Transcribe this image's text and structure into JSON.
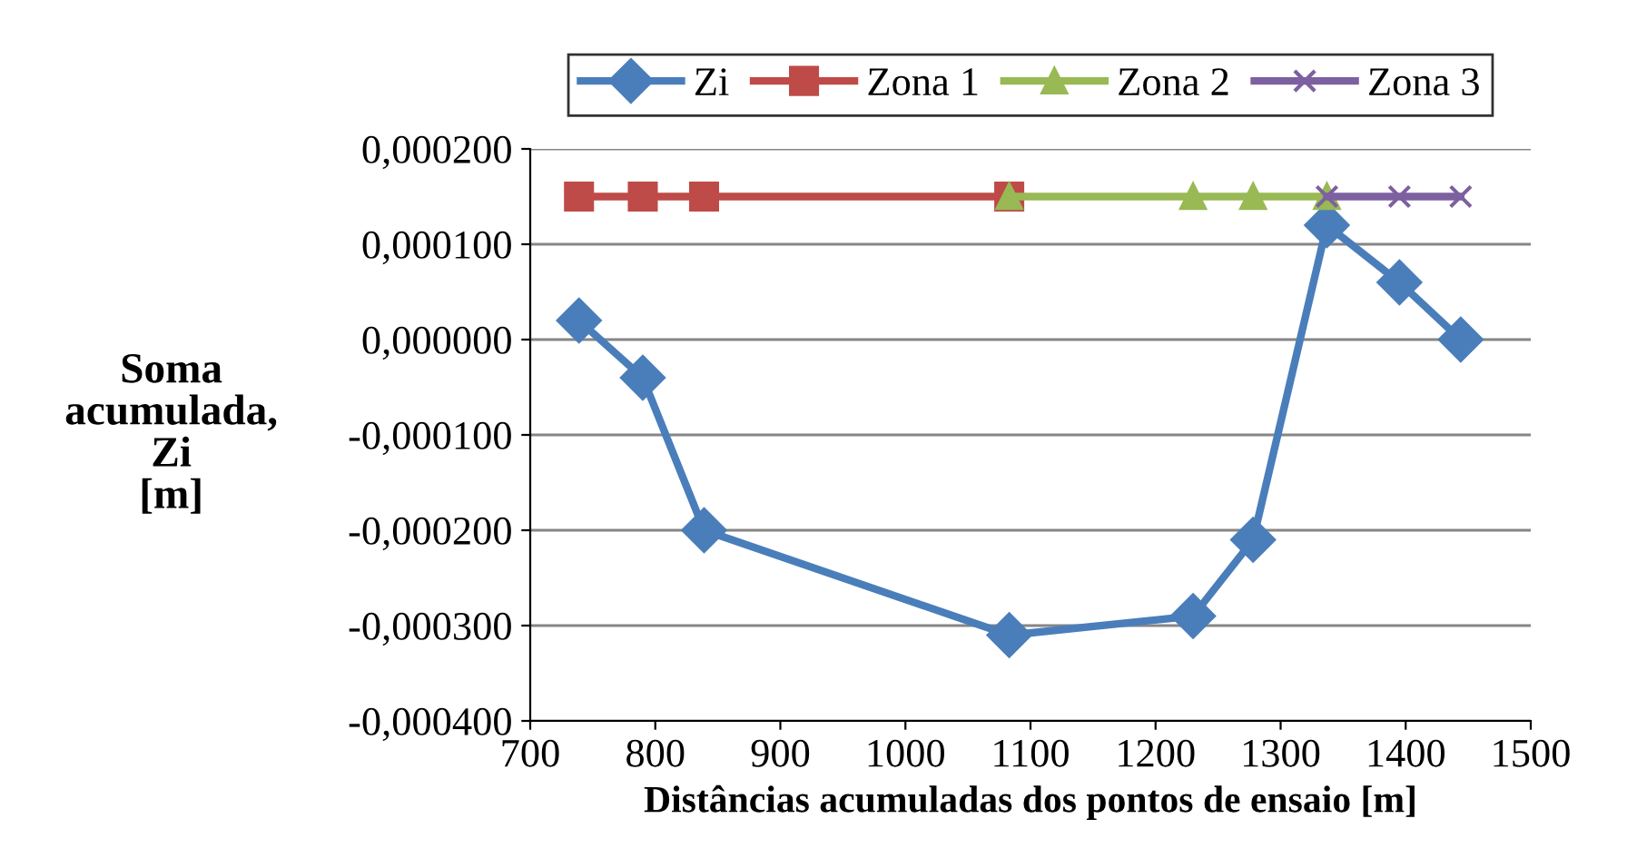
{
  "chart_data": {
    "type": "line",
    "xlabel": "Distâncias acumuladas dos pontos de ensaio [m]",
    "ylabel": "Soma\nacumulada,\nZi\n[m]",
    "series": [
      {
        "name": "Zi",
        "color": "#4a7ebb",
        "marker": "diamond",
        "x": [
          739,
          790,
          839,
          1083,
          1230,
          1278,
          1337,
          1395,
          1444
        ],
        "values": [
          2e-05,
          -4e-05,
          -0.0002,
          -0.00031,
          -0.00029,
          -0.00021,
          0.00012,
          6e-05,
          0.0
        ]
      },
      {
        "name": "Zona 1",
        "color": "#be4b48",
        "marker": "square",
        "x": [
          739,
          790,
          839,
          1083
        ],
        "values": [
          0.00015,
          0.00015,
          0.00015,
          0.00015
        ]
      },
      {
        "name": "Zona 2",
        "color": "#98b954",
        "marker": "triangle",
        "x": [
          1083,
          1230,
          1278,
          1337
        ],
        "values": [
          0.00015,
          0.00015,
          0.00015,
          0.00015
        ]
      },
      {
        "name": "Zona 3",
        "color": "#7d60a0",
        "marker": "cross",
        "x": [
          1337,
          1395,
          1444
        ],
        "values": [
          0.00015,
          0.00015,
          0.00015
        ]
      }
    ],
    "xlim": [
      700,
      1500
    ],
    "xticks": [
      700,
      800,
      900,
      1000,
      1100,
      1200,
      1300,
      1400,
      1500
    ],
    "ylim": [
      -0.0004,
      0.0002
    ],
    "yticks": [
      {
        "value": -0.0004,
        "label": "-0,000400"
      },
      {
        "value": -0.0003,
        "label": "-0,000300"
      },
      {
        "value": -0.0002,
        "label": "-0,000200"
      },
      {
        "value": -0.0001,
        "label": "-0,000100"
      },
      {
        "value": 0.0,
        "label": "0,000000"
      },
      {
        "value": 0.0001,
        "label": "0,000100"
      },
      {
        "value": 0.0002,
        "label": "0,000200"
      }
    ],
    "grid": "y",
    "legend": "top",
    "line_style": "solid"
  }
}
